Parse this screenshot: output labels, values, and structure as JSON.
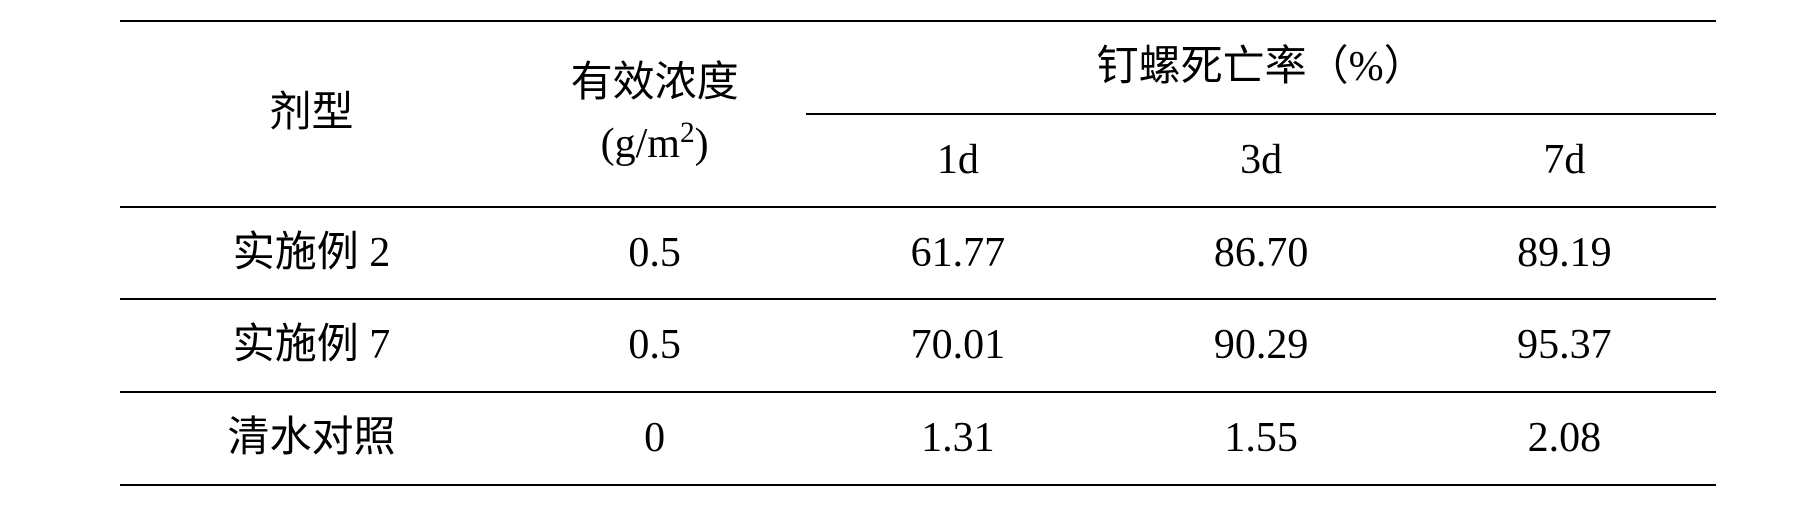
{
  "table": {
    "type": "table",
    "border_color": "#000000",
    "background_color": "#ffffff",
    "font_color": "#000000",
    "font_size_main": 42,
    "font_family": "SimSun / Times",
    "columns_layout": [
      "剂型",
      "有效浓度 (g/m²)",
      "1d",
      "3d",
      "7d"
    ],
    "header": {
      "type_label": "剂型",
      "concentration_label": "有效浓度",
      "concentration_unit_prefix": "(g/m",
      "concentration_unit_super": "2",
      "concentration_unit_suffix": ")",
      "mortality_group_label": "钉螺死亡率（%）",
      "sub_1d": "1d",
      "sub_3d": "3d",
      "sub_7d": "7d"
    },
    "rows": [
      {
        "type": "实施例 2",
        "conc": "0.5",
        "d1": "61.77",
        "d3": "86.70",
        "d7": "89.19"
      },
      {
        "type": "实施例 7",
        "conc": "0.5",
        "d1": "70.01",
        "d3": "90.29",
        "d7": "95.37"
      },
      {
        "type": "清水对照",
        "conc": "0",
        "d1": "1.31",
        "d3": "1.55",
        "d7": "2.08"
      }
    ]
  }
}
